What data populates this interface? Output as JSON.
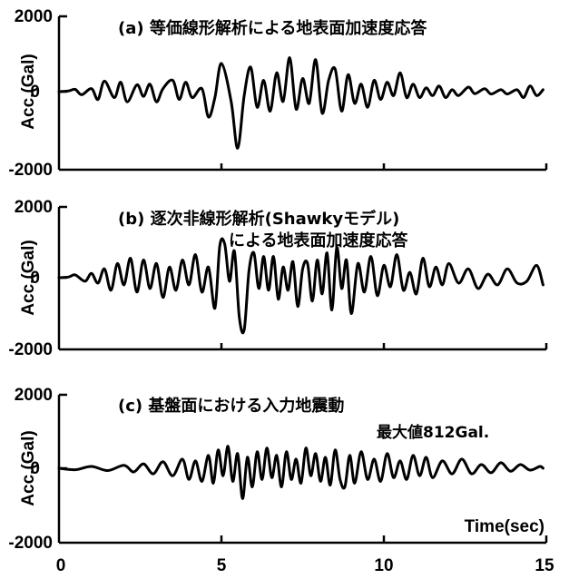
{
  "chart_data": [
    {
      "type": "line",
      "title": "(a) 等価線形解析による地表面加速度応答",
      "subtitle": "",
      "note": "",
      "xlabel": "",
      "ylabel": "Acc.(Gal)",
      "yticks": [
        "2000",
        "0",
        "-2000"
      ],
      "ylim": [
        -2000,
        2000
      ],
      "xlim": [
        0,
        15
      ],
      "xticks": [],
      "grid": false,
      "series": [
        {
          "x": [
            0,
            0.3,
            0.5,
            0.7,
            1.0,
            1.2,
            1.4,
            1.7,
            1.9,
            2.1,
            2.4,
            2.6,
            2.8,
            3.0,
            3.2,
            3.5,
            3.7,
            3.9,
            4.1,
            4.4,
            4.6,
            4.8,
            5.0,
            5.3,
            5.5,
            5.7,
            5.9,
            6.1,
            6.3,
            6.5,
            6.7,
            6.9,
            7.1,
            7.3,
            7.5,
            7.7,
            7.9,
            8.1,
            8.3,
            8.5,
            8.7,
            8.9,
            9.1,
            9.3,
            9.5,
            9.7,
            9.9,
            10.1,
            10.3,
            10.5,
            10.7,
            10.9,
            11.1,
            11.3,
            11.5,
            11.7,
            11.9,
            12.1,
            12.3,
            12.6,
            12.8,
            13.1,
            13.3,
            13.6,
            13.8,
            14.1,
            14.3,
            14.5,
            14.7,
            14.9
          ],
          "values": [
            0,
            20,
            60,
            -80,
            80,
            -200,
            280,
            -150,
            250,
            -260,
            180,
            -120,
            200,
            -260,
            80,
            300,
            -200,
            250,
            -150,
            80,
            -650,
            -150,
            750,
            -250,
            -1450,
            -100,
            650,
            -400,
            300,
            -500,
            500,
            -250,
            900,
            -450,
            350,
            -300,
            850,
            -550,
            300,
            600,
            -500,
            450,
            -300,
            200,
            -400,
            300,
            -200,
            250,
            -100,
            500,
            -150,
            200,
            -150,
            100,
            -100,
            150,
            -150,
            50,
            -100,
            120,
            -50,
            80,
            -60,
            50,
            -60,
            50,
            -150,
            150,
            -100,
            50
          ]
        }
      ]
    },
    {
      "type": "line",
      "title": "(b) 逐次非線形解析(Shawkyモデル)",
      "subtitle": "による地表面加速度応答",
      "note": "",
      "xlabel": "",
      "ylabel": "Acc.(Gal)",
      "yticks": [
        "2000",
        "0",
        "-2000"
      ],
      "ylim": [
        -2000,
        2000
      ],
      "xlim": [
        0,
        15
      ],
      "xticks": [],
      "grid": false,
      "series": [
        {
          "x": [
            0,
            0.3,
            0.5,
            0.8,
            1.0,
            1.2,
            1.4,
            1.6,
            1.8,
            2.0,
            2.2,
            2.4,
            2.6,
            2.8,
            3.0,
            3.2,
            3.4,
            3.6,
            3.8,
            4.0,
            4.2,
            4.4,
            4.6,
            4.8,
            4.95,
            5.1,
            5.25,
            5.4,
            5.55,
            5.7,
            5.85,
            6.0,
            6.15,
            6.3,
            6.45,
            6.6,
            6.75,
            6.9,
            7.05,
            7.2,
            7.35,
            7.5,
            7.65,
            7.8,
            7.95,
            8.1,
            8.25,
            8.4,
            8.55,
            8.7,
            8.85,
            9.0,
            9.2,
            9.4,
            9.6,
            9.8,
            10.0,
            10.2,
            10.4,
            10.6,
            10.8,
            11.0,
            11.2,
            11.4,
            11.6,
            11.8,
            12.0,
            12.3,
            12.6,
            12.9,
            13.2,
            13.5,
            13.8,
            14.1,
            14.4,
            14.7,
            14.9
          ],
          "values": [
            0,
            20,
            80,
            -100,
            120,
            -150,
            250,
            -350,
            400,
            -200,
            550,
            -400,
            500,
            -300,
            400,
            -550,
            300,
            -350,
            500,
            -200,
            650,
            -400,
            300,
            -850,
            900,
            950,
            -100,
            750,
            -1100,
            -1450,
            200,
            700,
            -300,
            600,
            -350,
            600,
            -600,
            300,
            -350,
            450,
            -800,
            250,
            400,
            -650,
            500,
            -450,
            700,
            -900,
            850,
            -300,
            500,
            -1000,
            400,
            -400,
            600,
            -500,
            350,
            -250,
            650,
            -350,
            150,
            -450,
            550,
            -250,
            300,
            -200,
            400,
            -150,
            250,
            -300,
            100,
            -200,
            250,
            -150,
            -100,
            350,
            -200
          ]
        }
      ]
    },
    {
      "type": "line",
      "title": "(c) 基盤面における入力地震動",
      "subtitle": "",
      "note": "最大値812Gal.",
      "xlabel": "Time(sec)",
      "ylabel": "Acc.(Gal)",
      "yticks": [
        "2000",
        "0",
        "-2000"
      ],
      "ylim": [
        -2000,
        2000
      ],
      "xlim": [
        0,
        15
      ],
      "xticks": [
        "0",
        "5",
        "10",
        "15"
      ],
      "grid": false,
      "series": [
        {
          "x": [
            0,
            0.5,
            1.0,
            1.5,
            2.0,
            2.3,
            2.6,
            2.9,
            3.2,
            3.5,
            3.8,
            4.0,
            4.2,
            4.4,
            4.6,
            4.75,
            4.9,
            5.05,
            5.2,
            5.35,
            5.5,
            5.65,
            5.8,
            5.95,
            6.1,
            6.25,
            6.4,
            6.55,
            6.7,
            6.85,
            7.0,
            7.15,
            7.3,
            7.45,
            7.6,
            7.75,
            7.9,
            8.05,
            8.2,
            8.35,
            8.5,
            8.65,
            8.8,
            8.95,
            9.1,
            9.3,
            9.5,
            9.7,
            9.9,
            10.1,
            10.3,
            10.5,
            10.7,
            10.9,
            11.1,
            11.3,
            11.5,
            11.8,
            12.1,
            12.4,
            12.7,
            13.0,
            13.3,
            13.6,
            13.9,
            14.2,
            14.5,
            14.8,
            14.9
          ],
          "values": [
            0,
            -40,
            50,
            -60,
            80,
            -100,
            120,
            -150,
            180,
            -200,
            250,
            -300,
            200,
            -350,
            350,
            -400,
            500,
            -200,
            600,
            -350,
            400,
            -812,
            300,
            -500,
            450,
            -300,
            550,
            -250,
            350,
            -500,
            450,
            -300,
            250,
            -400,
            550,
            -200,
            400,
            -350,
            300,
            -450,
            500,
            -300,
            -500,
            350,
            -400,
            450,
            -300,
            250,
            -350,
            400,
            -250,
            200,
            -300,
            350,
            -200,
            300,
            -250,
            200,
            -150,
            250,
            -150,
            100,
            -120,
            150,
            -80,
            100,
            -50,
            50,
            0
          ]
        }
      ]
    }
  ]
}
